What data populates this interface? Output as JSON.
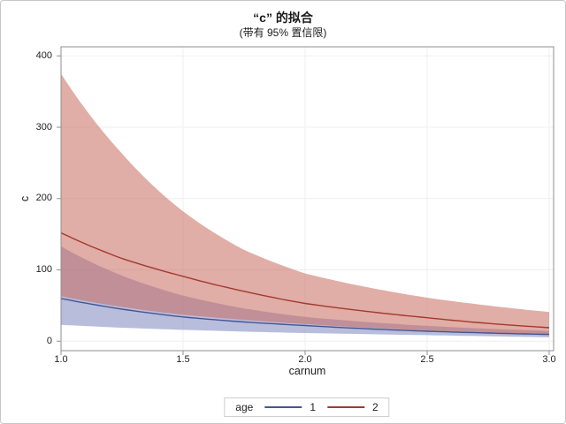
{
  "title": "“c” 的拟合",
  "subtitle": "(带有 95% 置信限)",
  "colors": {
    "frame": "#8f8f8f",
    "grid": "#efefef",
    "tick": "#8f8f8f",
    "text": "#222222",
    "canvas_border": "#c6c6c6",
    "legend_border": "#cfcfcf",
    "series1_line": "#445694",
    "series2_line": "#a23a2e",
    "series1_band": "rgba(125,135,192,0.55)",
    "series2_band": "rgba(200,105,95,0.55)"
  },
  "chart_data": {
    "type": "line",
    "title": "“c” 的拟合",
    "subtitle": "(带有 95% 置信限)",
    "xlabel": "carnum",
    "ylabel": "c",
    "xlim": [
      1.0,
      3.0
    ],
    "ylim": [
      0,
      400
    ],
    "x_ticks": [
      1.0,
      1.5,
      2.0,
      2.5,
      3.0
    ],
    "x_tick_labels": [
      "1.0",
      "1.5",
      "2.0",
      "2.5",
      "3.0"
    ],
    "y_ticks": [
      0,
      100,
      200,
      300,
      400
    ],
    "y_tick_labels": [
      "0",
      "100",
      "200",
      "300",
      "400"
    ],
    "grid": true,
    "confidence_level": "95%",
    "x": [
      1.0,
      1.25,
      1.5,
      1.75,
      2.0,
      2.25,
      2.5,
      2.75,
      3.0
    ],
    "series": [
      {
        "name": "1",
        "group": "age=1",
        "color": "#445694",
        "band_fill": "rgba(125,135,192,0.55)",
        "values": [
          60,
          45,
          34,
          27,
          22,
          17.5,
          14,
          11.5,
          9.5
        ],
        "upper": [
          133,
          92,
          64,
          46,
          34,
          27,
          21.5,
          17.5,
          14.5
        ],
        "lower": [
          23,
          19,
          16,
          13.5,
          11.5,
          10,
          8.5,
          7,
          5.5
        ]
      },
      {
        "name": "2",
        "group": "age=2",
        "color": "#a23a2e",
        "band_fill": "rgba(200,105,95,0.55)",
        "values": [
          152,
          116,
          91,
          70,
          53,
          42,
          33,
          25,
          19
        ],
        "upper": [
          375,
          263,
          182,
          128,
          95,
          76,
          61,
          50,
          41
        ],
        "lower": [
          63,
          48,
          37,
          30,
          24,
          19,
          15,
          12,
          9.5
        ]
      }
    ],
    "legend_position": "bottom"
  },
  "legend": {
    "title": "age",
    "items": [
      {
        "label": "1",
        "color": "#445694"
      },
      {
        "label": "2",
        "color": "#a23a2e"
      }
    ]
  }
}
